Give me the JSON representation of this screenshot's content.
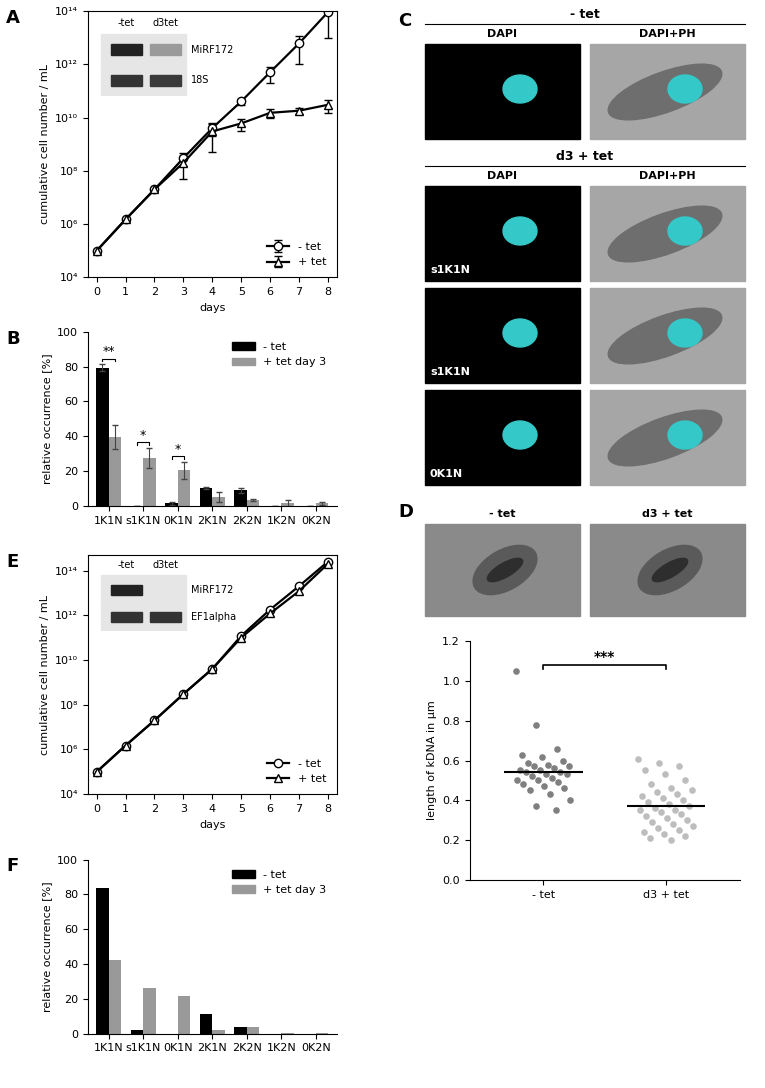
{
  "chart_data": [
    {
      "panel": "A",
      "type": "line",
      "log": "y",
      "x": [
        0,
        1,
        2,
        3,
        4,
        5,
        6,
        7,
        8
      ],
      "xlim": [
        -0.3,
        8.3
      ],
      "xticks": [
        0,
        1,
        2,
        3,
        4,
        5,
        6,
        7,
        8
      ],
      "ylim": [
        10000.0,
        100000000000000.0
      ],
      "yticks": [
        {
          "value": 10000.0,
          "label": "10⁴"
        },
        {
          "value": 1000000.0,
          "label": "10⁶"
        },
        {
          "value": 100000000.0,
          "label": "10⁸"
        },
        {
          "value": 10000000000.0,
          "label": "10¹⁰"
        },
        {
          "value": 1000000000000.0,
          "label": "10¹²"
        },
        {
          "value": 100000000000000.0,
          "label": "10¹⁴"
        }
      ],
      "xlabel": "days",
      "ylabel": "cumulative cell number / mL",
      "legend": "lower right",
      "series": [
        {
          "name": "- tet",
          "color": "#000000",
          "marker": "circle",
          "values": [
            100000.0,
            1500000.0,
            20000000.0,
            300000000.0,
            4000000000.0,
            40000000000.0,
            500000000000.0,
            6000000000000.0,
            90000000000000.0
          ],
          "errors": [
            0,
            0,
            0,
            150000000.0,
            2000000000.0,
            10000000000.0,
            300000000000.0,
            5000000000000.0,
            80000000000000.0
          ]
        },
        {
          "name": "+ tet",
          "color": "#000000",
          "marker": "triangle",
          "values": [
            100000.0,
            1500000.0,
            20000000.0,
            200000000.0,
            3000000000.0,
            6000000000.0,
            15000000000.0,
            18000000000.0,
            30000000000.0
          ],
          "errors": [
            0,
            0,
            0,
            150000000.0,
            2500000000.0,
            3000000000.0,
            5000000000.0,
            5000000000.0,
            15000000000.0
          ]
        }
      ],
      "inset": {
        "columns": [
          "-tet",
          "d3tet"
        ],
        "rows": [
          "MiRF172",
          "18S"
        ]
      }
    },
    {
      "panel": "B",
      "type": "bar",
      "categories": [
        "1K1N",
        "s1K1N",
        "0K1N",
        "2K1N",
        "2K2N",
        "1K2N",
        "0K2N"
      ],
      "ylim": [
        0,
        100
      ],
      "yticks": [
        0,
        20,
        40,
        60,
        80,
        100
      ],
      "ylabel": "relative occurrence [%]",
      "legend": "upper right",
      "series": [
        {
          "name": "- tet",
          "color": "#000000",
          "values": [
            79.5,
            0,
            1.5,
            10.5,
            9,
            0,
            0
          ],
          "errors": [
            2,
            0,
            1,
            0.5,
            1.5,
            0,
            0
          ]
        },
        {
          "name": "+ tet day 3",
          "color": "#999999",
          "values": [
            39.5,
            27.5,
            20.5,
            5,
            3.5,
            1.5,
            1.5
          ],
          "errors": [
            7,
            6,
            5,
            3,
            0.5,
            2,
            1
          ]
        }
      ],
      "annotations": [
        {
          "category": "1K1N",
          "text": "**"
        },
        {
          "category": "s1K1N",
          "text": "*"
        },
        {
          "category": "0K1N",
          "text": "*"
        }
      ]
    },
    {
      "panel": "E",
      "type": "line",
      "log": "y",
      "x": [
        0,
        1,
        2,
        3,
        4,
        5,
        6,
        7,
        8
      ],
      "xlim": [
        -0.3,
        8.3
      ],
      "xticks": [
        0,
        1,
        2,
        3,
        4,
        5,
        6,
        7,
        8
      ],
      "ylim": [
        10000.0,
        500000000000000.0
      ],
      "yticks": [
        {
          "value": 10000.0,
          "label": "10⁴"
        },
        {
          "value": 1000000.0,
          "label": "10⁶"
        },
        {
          "value": 100000000.0,
          "label": "10⁸"
        },
        {
          "value": 10000000000.0,
          "label": "10¹⁰"
        },
        {
          "value": 1000000000000.0,
          "label": "10¹²"
        },
        {
          "value": 100000000000000.0,
          "label": "10¹⁴"
        }
      ],
      "xlabel": "days",
      "ylabel": "cumulative cell number / mL",
      "legend": "lower right",
      "series": [
        {
          "name": "- tet",
          "color": "#000000",
          "marker": "circle",
          "values": [
            100000.0,
            1500000.0,
            20000000.0,
            300000000.0,
            4000000000.0,
            120000000000.0,
            1800000000000.0,
            20000000000000.0,
            250000000000000.0
          ]
        },
        {
          "name": "+ tet",
          "color": "#000000",
          "marker": "triangle",
          "values": [
            100000.0,
            1500000.0,
            20000000.0,
            300000000.0,
            4000000000.0,
            100000000000.0,
            1200000000000.0,
            12000000000000.0,
            200000000000000.0
          ]
        }
      ],
      "inset": {
        "columns": [
          "-tet",
          "d3tet"
        ],
        "rows": [
          "MiRF172",
          "EF1alpha"
        ]
      }
    },
    {
      "panel": "F",
      "type": "bar",
      "categories": [
        "1K1N",
        "s1K1N",
        "0K1N",
        "2K1N",
        "2K2N",
        "1K2N",
        "0K2N"
      ],
      "ylim": [
        0,
        100
      ],
      "yticks": [
        0,
        20,
        40,
        60,
        80,
        100
      ],
      "ylabel": "relative occurrence [%]",
      "legend": "upper right",
      "series": [
        {
          "name": "- tet",
          "color": "#000000",
          "values": [
            83.5,
            2,
            0,
            11,
            4,
            0,
            0
          ]
        },
        {
          "name": "+ tet day 3",
          "color": "#999999",
          "values": [
            42.5,
            26,
            21.5,
            2,
            4,
            0.5,
            0.5
          ]
        }
      ]
    },
    {
      "panel": "D",
      "type": "scatter",
      "categories": [
        "- tet",
        "d3 + tet"
      ],
      "ylabel": "length of kDNA in µm",
      "ylim": [
        0,
        1.2
      ],
      "yticks": [
        {
          "value": 0,
          "label": "0.0"
        },
        {
          "value": 0.2,
          "label": "0.2"
        },
        {
          "value": 0.4,
          "label": "0.4"
        },
        {
          "value": 0.6,
          "label": "0.6"
        },
        {
          "value": 0.8,
          "label": "0.8"
        },
        {
          "value": 1.0,
          "label": "1.0"
        },
        {
          "value": 1.2,
          "label": "1.2"
        }
      ],
      "colors": [
        "#7f7f7f",
        "#bdbdbd"
      ],
      "values": [
        [
          1.05,
          0.78,
          0.66,
          0.63,
          0.62,
          0.6,
          0.59,
          0.58,
          0.57,
          0.57,
          0.56,
          0.55,
          0.55,
          0.54,
          0.54,
          0.53,
          0.53,
          0.52,
          0.51,
          0.5,
          0.5,
          0.49,
          0.48,
          0.47,
          0.46,
          0.45,
          0.43,
          0.4,
          0.37,
          0.35
        ],
        [
          0.61,
          0.59,
          0.57,
          0.55,
          0.53,
          0.5,
          0.48,
          0.46,
          0.45,
          0.44,
          0.43,
          0.42,
          0.41,
          0.4,
          0.39,
          0.38,
          0.37,
          0.36,
          0.35,
          0.35,
          0.34,
          0.33,
          0.32,
          0.31,
          0.3,
          0.29,
          0.28,
          0.27,
          0.26,
          0.25,
          0.24,
          0.23,
          0.22,
          0.21,
          0.2
        ]
      ],
      "means": [
        0.54,
        0.37
      ],
      "annotations": [
        {
          "text": "***"
        }
      ],
      "images": {
        "columns": [
          "- tet",
          "d3 + tet"
        ]
      }
    }
  ],
  "micrographs": {
    "panel": "C",
    "columns": [
      "DAPI",
      "DAPI+PH"
    ],
    "groups": [
      {
        "title": "- tet",
        "rows": [
          null
        ]
      },
      {
        "title": "d3 + tet",
        "rows": [
          "s1K1N",
          "s1K1N",
          "0K1N"
        ]
      }
    ]
  }
}
